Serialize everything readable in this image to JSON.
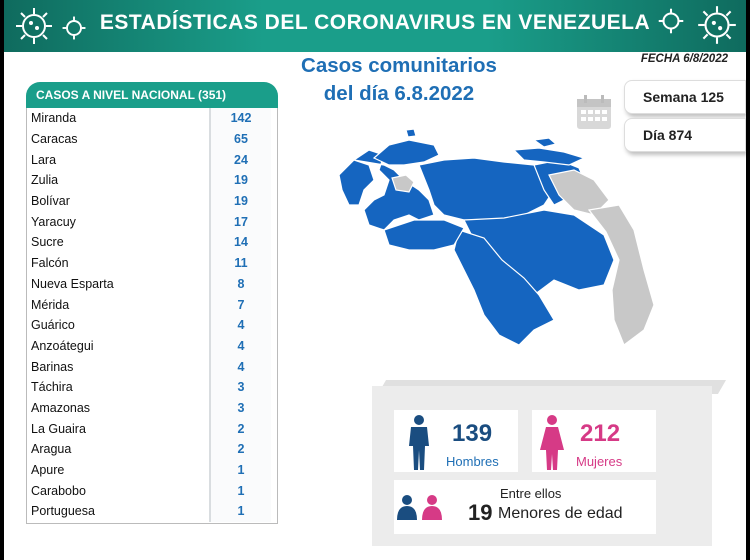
{
  "header": {
    "title": "ESTADÍSTICAS DEL CORONAVIRUS EN VENEZUELA"
  },
  "fecha": "FECHA 6/8/2022",
  "subtitle": {
    "line1": "Casos comunitarios",
    "line2": "del día 6.8.2022"
  },
  "table": {
    "title": "CASOS A NIVEL NACIONAL (351)",
    "rows": [
      {
        "state": "Miranda",
        "value": "142"
      },
      {
        "state": "Caracas",
        "value": "65"
      },
      {
        "state": "Lara",
        "value": "24"
      },
      {
        "state": "Zulia",
        "value": "19"
      },
      {
        "state": "Bolívar",
        "value": "19"
      },
      {
        "state": "Yaracuy",
        "value": "17"
      },
      {
        "state": "Sucre",
        "value": "14"
      },
      {
        "state": "Falcón",
        "value": "11"
      },
      {
        "state": "Nueva Esparta",
        "value": "8"
      },
      {
        "state": "Mérida",
        "value": "7"
      },
      {
        "state": "Guárico",
        "value": "4"
      },
      {
        "state": "Anzoátegui",
        "value": "4"
      },
      {
        "state": "Barinas",
        "value": "4"
      },
      {
        "state": "Táchira",
        "value": "3"
      },
      {
        "state": "Amazonas",
        "value": "3"
      },
      {
        "state": "La Guaira",
        "value": "2"
      },
      {
        "state": "Aragua",
        "value": "2"
      },
      {
        "state": "Apure",
        "value": "1"
      },
      {
        "state": "Carabobo",
        "value": "1"
      },
      {
        "state": "Portuguesa",
        "value": "1"
      }
    ]
  },
  "semana": "Semana 125",
  "dia": "Día 874",
  "gender": {
    "men_count": "139",
    "men_label": "Hombres",
    "women_count": "212",
    "women_label": "Mujeres",
    "entre": "Entre ellos",
    "minors_count": "19",
    "minors_label": "Menores de edad"
  },
  "colors": {
    "teal": "#1a9e8a",
    "blue": "#1f6fb5",
    "pink": "#d63a86",
    "map_blue": "#1565c0",
    "map_gray": "#c8c8c8"
  },
  "icons": [
    "virus-icon",
    "calendar-icon",
    "man-icon",
    "woman-icon",
    "family-icon"
  ]
}
